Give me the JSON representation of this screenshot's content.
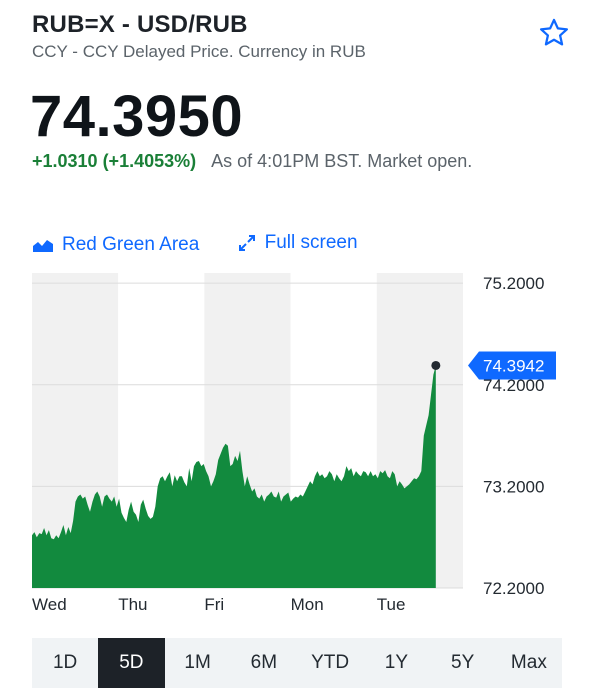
{
  "header": {
    "title": "RUB=X - USD/RUB",
    "subtitle": "CCY - CCY Delayed Price. Currency in RUB"
  },
  "quote": {
    "price": "74.3950",
    "change": "+1.0310 (+1.4053%)",
    "as_of": "As of 4:01PM BST. Market open."
  },
  "controls": {
    "chart_style_label": "Red Green Area",
    "fullscreen_label": "Full screen"
  },
  "colors": {
    "accent": "#0f69ff",
    "positive": "#1a7f37",
    "area_fill": "#128a3e"
  },
  "chart_data": {
    "type": "area",
    "x_labels": [
      "Wed",
      "Thu",
      "Fri",
      "Mon",
      "Tue"
    ],
    "y_ticks": [
      "75.2000",
      "74.2000",
      "73.2000",
      "72.2000"
    ],
    "ylim": [
      72.2,
      75.3
    ],
    "current_value_label": "74.3942",
    "series": [
      {
        "values": [
          72.72,
          72.75,
          72.7,
          72.74,
          72.73,
          72.79,
          72.72,
          72.77,
          72.69,
          72.68,
          72.72,
          72.69,
          72.75,
          72.82,
          72.72,
          72.8,
          72.74,
          72.86,
          73.05,
          73.1,
          73.12,
          73.08,
          73.1,
          73.02,
          72.95,
          73.05,
          73.12,
          73.15,
          73.1,
          73.0,
          73.1,
          73.12,
          73.08,
          73.05,
          73.1,
          73.0,
          73.08,
          72.94,
          72.89,
          72.85,
          72.97,
          73.05,
          72.95,
          72.92,
          72.85,
          73.02,
          73.07,
          72.98,
          72.91,
          72.88,
          72.9,
          73.0,
          73.2,
          73.28,
          73.3,
          73.25,
          73.3,
          73.34,
          73.2,
          73.31,
          73.25,
          73.3,
          73.3,
          73.24,
          73.2,
          73.38,
          73.25,
          73.4,
          73.44,
          73.45,
          73.4,
          73.42,
          73.35,
          73.3,
          73.2,
          73.25,
          73.32,
          73.46,
          73.52,
          73.58,
          73.62,
          73.6,
          73.4,
          73.42,
          73.5,
          73.45,
          73.55,
          73.35,
          73.2,
          73.3,
          73.22,
          73.15,
          73.18,
          73.1,
          73.08,
          73.12,
          73.05,
          73.1,
          73.12,
          73.15,
          73.1,
          73.09,
          73.15,
          73.05,
          73.1,
          73.12,
          73.14,
          73.05,
          73.08,
          73.1,
          73.09,
          73.12,
          73.1,
          73.15,
          73.2,
          73.25,
          73.22,
          73.3,
          73.35,
          73.3,
          73.32,
          73.28,
          73.3,
          73.35,
          73.32,
          73.25,
          73.32,
          73.28,
          73.25,
          73.3,
          73.4,
          73.35,
          73.38,
          73.3,
          73.35,
          73.32,
          73.3,
          73.35,
          73.34,
          73.3,
          73.35,
          73.3,
          73.32,
          73.28,
          73.35,
          73.33,
          73.36,
          73.3,
          73.28,
          73.35,
          73.32,
          73.2,
          73.25,
          73.22,
          73.18,
          73.2,
          73.22,
          73.25,
          73.28,
          73.27,
          73.3,
          73.35,
          73.7,
          73.8,
          73.9,
          74.1,
          74.3,
          74.39
        ]
      }
    ]
  },
  "ranges": {
    "items": [
      "1D",
      "5D",
      "1M",
      "6M",
      "YTD",
      "1Y",
      "5Y",
      "Max"
    ],
    "selected": "5D"
  }
}
